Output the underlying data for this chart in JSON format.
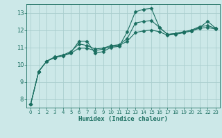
{
  "title": "",
  "xlabel": "Humidex (Indice chaleur)",
  "bg_color": "#cce8e8",
  "grid_color": "#aacece",
  "line_color": "#1a6e60",
  "xlim": [
    -0.5,
    23.5
  ],
  "ylim": [
    7.5,
    13.5
  ],
  "yticks": [
    8,
    9,
    10,
    11,
    12,
    13
  ],
  "xticks": [
    0,
    1,
    2,
    3,
    4,
    5,
    6,
    7,
    8,
    9,
    10,
    11,
    12,
    13,
    14,
    15,
    16,
    17,
    18,
    19,
    20,
    21,
    22,
    23
  ],
  "line1_x": [
    0,
    1,
    2,
    3,
    4,
    5,
    6,
    7,
    8,
    9,
    10,
    11,
    12,
    13,
    14,
    15,
    16,
    17,
    18,
    19,
    20,
    21,
    22,
    23
  ],
  "line1_y": [
    7.7,
    9.6,
    10.2,
    10.4,
    10.5,
    10.7,
    11.35,
    11.35,
    10.65,
    10.75,
    11.0,
    11.05,
    11.9,
    13.05,
    13.2,
    13.25,
    12.15,
    11.75,
    11.8,
    11.85,
    11.95,
    12.15,
    12.5,
    12.1
  ],
  "line2_x": [
    0,
    1,
    2,
    3,
    4,
    5,
    6,
    7,
    8,
    9,
    10,
    11,
    12,
    13,
    14,
    15,
    16,
    17,
    18,
    19,
    20,
    21,
    22,
    23
  ],
  "line2_y": [
    7.7,
    9.6,
    10.2,
    10.45,
    10.55,
    10.75,
    11.2,
    11.1,
    10.9,
    10.95,
    11.1,
    11.15,
    11.5,
    12.4,
    12.5,
    12.55,
    12.15,
    11.75,
    11.8,
    11.9,
    12.0,
    12.2,
    12.25,
    12.1
  ],
  "line3_x": [
    0,
    1,
    2,
    3,
    4,
    5,
    6,
    7,
    8,
    9,
    10,
    11,
    12,
    13,
    14,
    15,
    16,
    17,
    18,
    19,
    20,
    21,
    22,
    23
  ],
  "line3_y": [
    7.7,
    9.6,
    10.2,
    10.4,
    10.5,
    10.65,
    10.95,
    10.95,
    10.8,
    10.9,
    11.05,
    11.1,
    11.35,
    11.85,
    11.95,
    12.0,
    11.9,
    11.7,
    11.75,
    11.85,
    11.95,
    12.1,
    12.15,
    12.05
  ]
}
